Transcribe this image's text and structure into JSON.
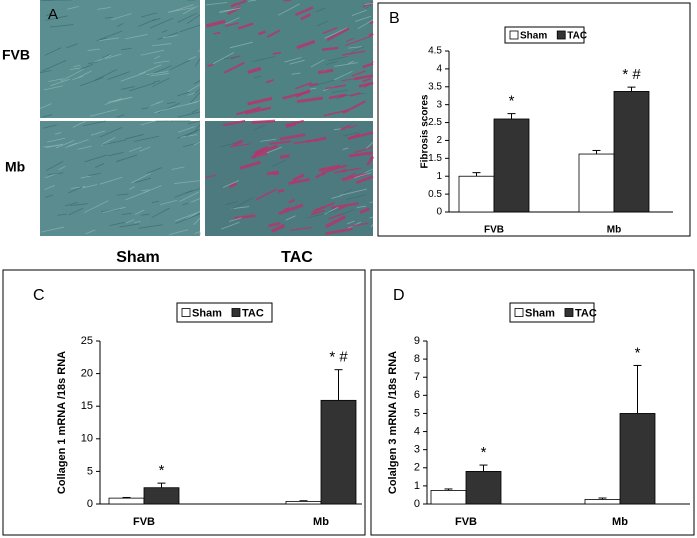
{
  "panel_a": {
    "label": "A",
    "rows": [
      "FVB",
      "Mb"
    ],
    "columns": [
      "Sham",
      "TAC"
    ]
  },
  "chart_data": [
    {
      "type": "bar",
      "panel": "B",
      "ylabel": "Fibrosis scores",
      "categories": [
        "FVB",
        "Mb"
      ],
      "series": [
        {
          "name": "Sham",
          "color": "#ffffff",
          "values": [
            1.0,
            1.62
          ],
          "errors": [
            0.1,
            0.1
          ]
        },
        {
          "name": "TAC",
          "color": "#333333",
          "values": [
            2.6,
            3.37
          ],
          "errors": [
            0.15,
            0.12
          ]
        }
      ],
      "annotations": [
        "*",
        "* #"
      ],
      "ylim": [
        0,
        4.5
      ],
      "yticks": [
        0,
        0.5,
        1,
        1.5,
        2,
        2.5,
        3,
        3.5,
        4,
        4.5
      ]
    },
    {
      "type": "bar",
      "panel": "C",
      "ylabel": "Collagen 1 mRNA /18s RNA",
      "categories": [
        "FVB",
        "Mb"
      ],
      "series": [
        {
          "name": "Sham",
          "color": "#ffffff",
          "values": [
            0.9,
            0.4
          ],
          "errors": [
            0.1,
            0.1
          ]
        },
        {
          "name": "TAC",
          "color": "#333333",
          "values": [
            2.5,
            15.9
          ],
          "errors": [
            0.7,
            4.7
          ]
        }
      ],
      "annotations": [
        "*",
        "* #"
      ],
      "ylim": [
        0,
        25
      ],
      "yticks": [
        0,
        5,
        10,
        15,
        20,
        25
      ]
    },
    {
      "type": "bar",
      "panel": "D",
      "ylabel": "Colalgen 3 mRNA /18s RNA",
      "categories": [
        "FVB",
        "Mb"
      ],
      "series": [
        {
          "name": "Sham",
          "color": "#ffffff",
          "values": [
            0.75,
            0.25
          ],
          "errors": [
            0.08,
            0.08
          ]
        },
        {
          "name": "TAC",
          "color": "#333333",
          "values": [
            1.8,
            5.0
          ],
          "errors": [
            0.35,
            2.65
          ]
        }
      ],
      "annotations": [
        "*",
        "*"
      ],
      "ylim": [
        0,
        9
      ],
      "yticks": [
        0,
        1,
        2,
        3,
        4,
        5,
        6,
        7,
        8,
        9
      ]
    }
  ]
}
